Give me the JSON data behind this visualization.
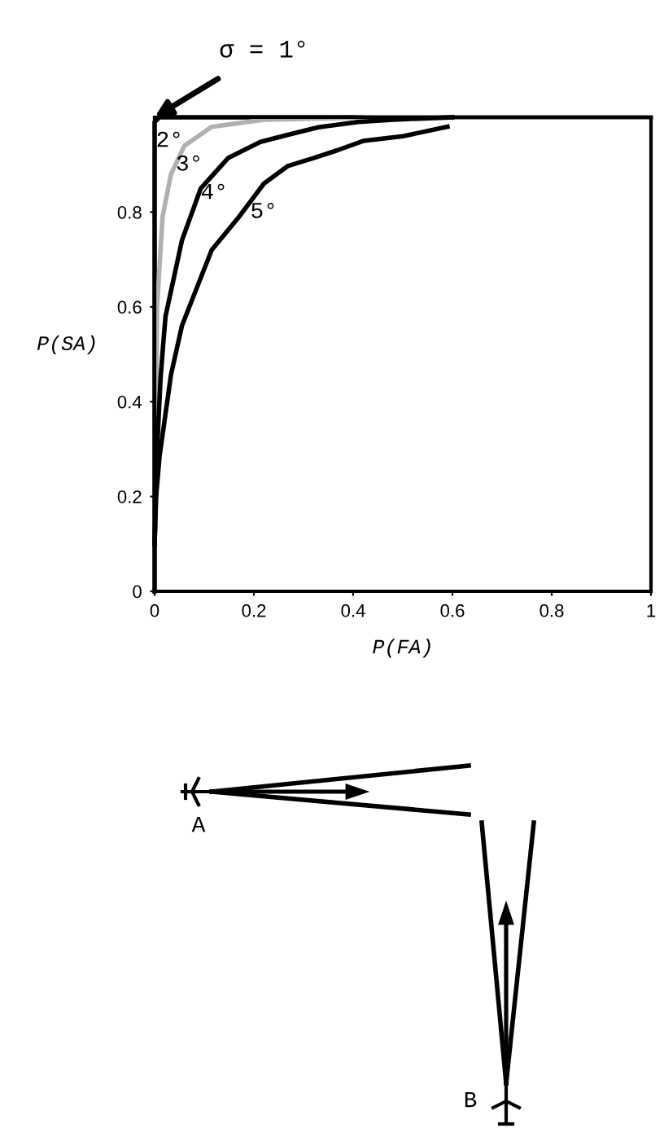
{
  "chart_data": {
    "type": "line",
    "xlabel": "P(FA)",
    "ylabel": "P(SA)",
    "xlim": [
      0,
      1
    ],
    "ylim": [
      0,
      1
    ],
    "xticks": [
      0,
      0.2,
      0.4,
      0.6,
      0.8,
      1
    ],
    "yticks": [
      0,
      0.2,
      0.4,
      0.6,
      0.8
    ],
    "grid": false,
    "marker": "none",
    "line_style": "solid",
    "series": [
      {
        "color": "#000000",
        "x": [
          0,
          0,
          0.01,
          1
        ],
        "values": [
          0,
          0.99,
          1,
          1
        ]
      },
      {
        "color": "#b0b0b0",
        "x": [
          0.002,
          0.004,
          0.005,
          0.016,
          0.033,
          0.06,
          0.115,
          0.22,
          0.45,
          1
        ],
        "values": [
          0.3,
          0.5,
          0.6,
          0.79,
          0.88,
          0.94,
          0.98,
          0.995,
          1,
          1
        ]
      },
      {
        "color": "#000000",
        "x": [
          0,
          0.005,
          0.012,
          0.018,
          0.022,
          0.055,
          0.093,
          0.148,
          0.213,
          0.28,
          0.33,
          0.41,
          0.48,
          0.6
        ],
        "values": [
          0.1,
          0.3,
          0.45,
          0.53,
          0.58,
          0.74,
          0.85,
          0.914,
          0.948,
          0.966,
          0.979,
          0.99,
          0.995,
          1
        ]
      },
      {
        "color": "#000000",
        "x": [
          0,
          0.003,
          0.01,
          0.033,
          0.055,
          0.115,
          0.17,
          0.22,
          0.268,
          0.32,
          0.367,
          0.42,
          0.5,
          0.59
        ],
        "values": [
          0.1,
          0.2,
          0.285,
          0.457,
          0.56,
          0.72,
          0.79,
          0.86,
          0.897,
          0.914,
          0.93,
          0.95,
          0.96,
          0.98
        ]
      }
    ],
    "annotations": [
      {
        "text": "σ = 1°",
        "x": 0,
        "y": 1
      },
      "2°",
      "3°",
      "4°",
      "5°",
      "A",
      "B"
    ]
  }
}
